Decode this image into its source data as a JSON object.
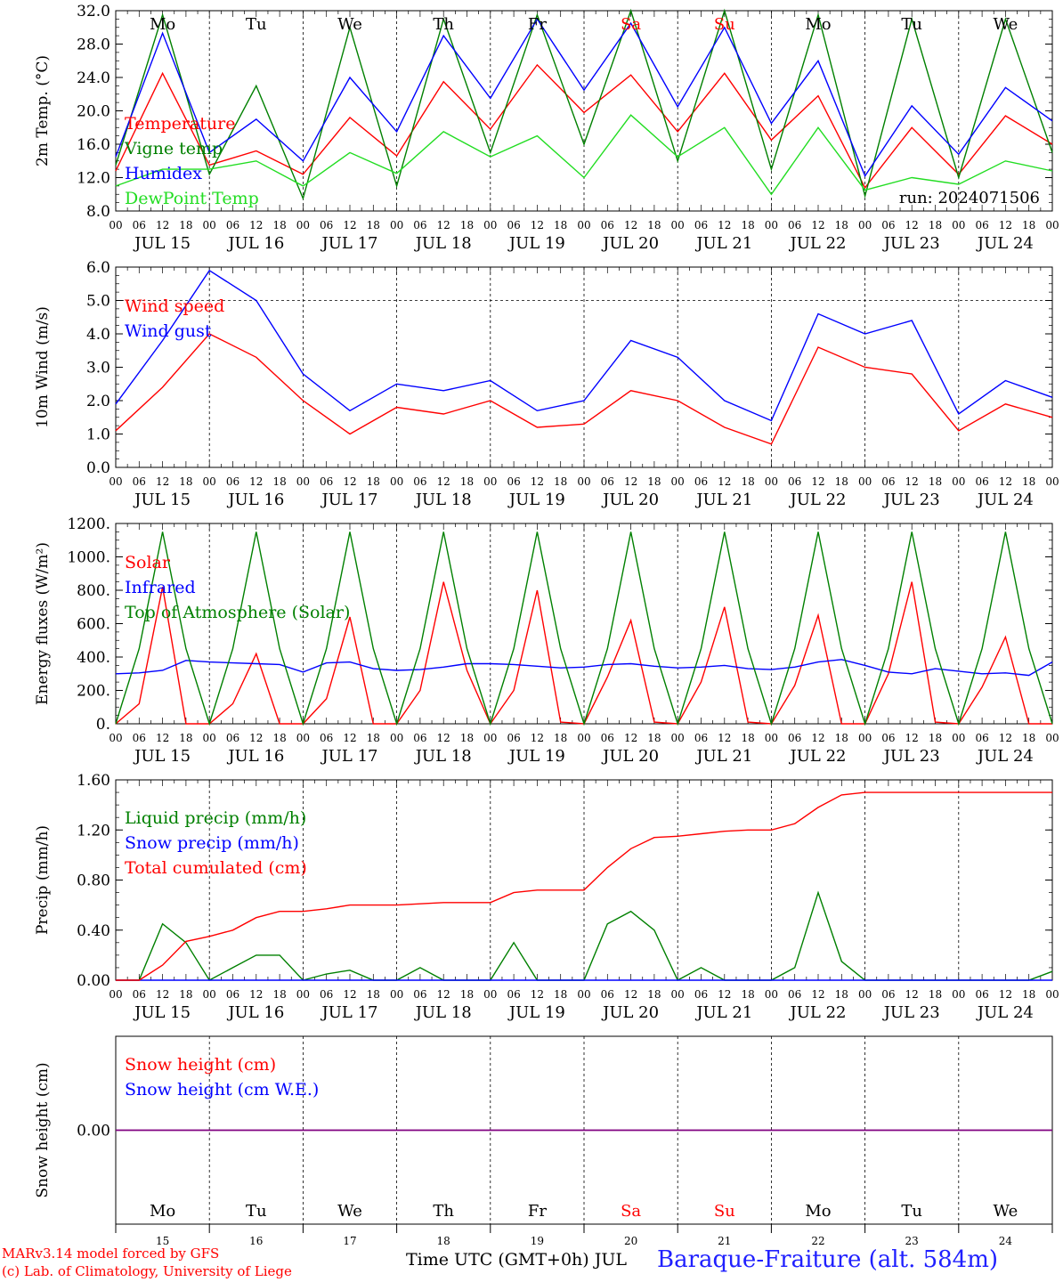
{
  "footer": {
    "model": "MARv3.14 model forced by GFS",
    "lab": "(c) Lab. of Climatology, University of Liege",
    "xaxis_label": "Time UTC (GMT+0h) JUL",
    "station": "Baraque-Fraiture (alt. 584m)"
  },
  "colors": {
    "red": "#ff0000",
    "green": "#008000",
    "blue": "#0000ff",
    "lightgreen": "#22dd22",
    "purple": "#800080",
    "weekend": "#ff0000"
  },
  "weekdays": [
    "Mo",
    "Tu",
    "We",
    "Th",
    "Fr",
    "Sa",
    "Su",
    "Mo",
    "Tu",
    "We"
  ],
  "weekend_flags": [
    false,
    false,
    false,
    false,
    false,
    true,
    true,
    false,
    false,
    false
  ],
  "day_numbers": [
    "15",
    "16",
    "17",
    "18",
    "19",
    "20",
    "21",
    "22",
    "23",
    "24"
  ],
  "date_labels": [
    "JUL 15",
    "JUL 16",
    "JUL 17",
    "JUL 18",
    "JUL 19",
    "JUL 20",
    "JUL 21",
    "JUL 22",
    "JUL 23",
    "JUL 24"
  ],
  "hour_ticks": [
    "00",
    "06",
    "12",
    "18"
  ],
  "final_hour_tick": "00",
  "chart_data": [
    {
      "type": "line",
      "ylabel": "2m Temp. (°C)",
      "ylim": [
        8,
        32
      ],
      "yticks": [
        "8.0",
        "12.0",
        "16.0",
        "20.0",
        "24.0",
        "28.0",
        "32.0"
      ],
      "annotation": "run: 2024071506",
      "x": [
        0,
        12,
        24,
        36,
        48,
        60,
        72,
        84,
        96,
        108,
        120,
        132,
        144,
        156,
        168,
        180,
        192,
        204,
        216,
        228,
        240
      ],
      "series": [
        {
          "name": "Temperature",
          "color": "#ff0000",
          "values": [
            12.8,
            24.5,
            13.5,
            15.2,
            12.4,
            19.2,
            14.6,
            23.5,
            17.8,
            25.5,
            19.8,
            24.3,
            17.5,
            24.5,
            16.5,
            21.8,
            10.8,
            18.0,
            12.4,
            19.4,
            16.0
          ]
        },
        {
          "name": "Vigne temp",
          "color": "#008000",
          "values": [
            13.5,
            31.5,
            12.4,
            23.0,
            9.5,
            30.0,
            11.0,
            31.0,
            15.0,
            31.5,
            16.0,
            32.0,
            14.0,
            32.0,
            13.0,
            31.5,
            9.8,
            31.0,
            12.0,
            31.0,
            15.0
          ]
        },
        {
          "name": "Humidex",
          "color": "#0000ff",
          "values": [
            14.5,
            29.3,
            15.0,
            19.0,
            14.0,
            24.0,
            17.5,
            29.0,
            21.5,
            31.0,
            22.5,
            30.5,
            20.5,
            30.0,
            18.5,
            26.0,
            12.2,
            20.6,
            14.8,
            22.8,
            18.8
          ]
        },
        {
          "name": "DewPoint Temp",
          "color": "#22dd22",
          "values": [
            11.0,
            13.0,
            13.0,
            14.0,
            11.0,
            15.0,
            12.5,
            17.5,
            14.5,
            17.0,
            12.0,
            19.5,
            14.5,
            18.0,
            10.0,
            18.0,
            10.5,
            12.0,
            11.2,
            14.0,
            12.8
          ]
        }
      ]
    },
    {
      "type": "line",
      "ylabel": "10m Wind (m/s)",
      "ylim": [
        0,
        6
      ],
      "yticks": [
        "0.0",
        "1.0",
        "2.0",
        "3.0",
        "4.0",
        "5.0",
        "6.0"
      ],
      "ref_line": 5,
      "x": [
        0,
        12,
        24,
        36,
        48,
        60,
        72,
        84,
        96,
        108,
        120,
        132,
        144,
        156,
        168,
        180,
        192,
        204,
        216,
        228,
        240
      ],
      "series": [
        {
          "name": "Wind speed",
          "color": "#ff0000",
          "values": [
            1.1,
            2.4,
            4.0,
            3.3,
            2.0,
            1.0,
            1.8,
            1.6,
            2.0,
            1.2,
            1.3,
            2.3,
            2.0,
            1.2,
            0.7,
            3.6,
            3.0,
            2.8,
            1.1,
            1.9,
            1.5
          ]
        },
        {
          "name": "Wind gust",
          "color": "#0000ff",
          "values": [
            1.9,
            3.8,
            5.9,
            5.0,
            2.8,
            1.7,
            2.5,
            2.3,
            2.6,
            1.7,
            2.0,
            3.8,
            3.3,
            2.0,
            1.4,
            4.6,
            4.0,
            4.4,
            1.6,
            2.6,
            2.1
          ]
        }
      ]
    },
    {
      "type": "line",
      "ylabel": "Energy fluxes (W/m²)",
      "ylim": [
        0,
        1200
      ],
      "yticks": [
        "0.",
        "200.",
        "400.",
        "600.",
        "800.",
        "1000.",
        "1200."
      ],
      "x_note": "values every 6 h from 00 Jul 15 to 00 Jul 25",
      "series": [
        {
          "name": "Solar",
          "color": "#ff0000",
          "values": [
            0,
            120,
            820,
            0,
            0,
            120,
            420,
            0,
            0,
            150,
            640,
            0,
            0,
            200,
            850,
            320,
            0,
            200,
            800,
            10,
            0,
            280,
            620,
            10,
            0,
            250,
            700,
            10,
            0,
            230,
            650,
            0,
            0,
            300,
            850,
            10,
            0,
            220,
            520,
            0,
            0
          ]
        },
        {
          "name": "Infrared",
          "color": "#0000ff",
          "values": [
            300,
            305,
            320,
            380,
            370,
            365,
            360,
            355,
            310,
            365,
            370,
            330,
            320,
            325,
            340,
            360,
            360,
            355,
            345,
            335,
            340,
            355,
            360,
            345,
            335,
            340,
            350,
            330,
            325,
            340,
            370,
            385,
            350,
            310,
            300,
            330,
            315,
            300,
            305,
            290,
            370
          ]
        },
        {
          "name": "Top of Atmosphere (Solar)",
          "color": "#008000",
          "values": [
            0,
            450,
            1150,
            450,
            0,
            450,
            1150,
            450,
            0,
            450,
            1150,
            450,
            0,
            450,
            1150,
            450,
            0,
            450,
            1150,
            450,
            0,
            450,
            1150,
            450,
            0,
            450,
            1150,
            450,
            0,
            450,
            1150,
            450,
            0,
            450,
            1150,
            450,
            0,
            450,
            1150,
            450,
            0
          ]
        }
      ]
    },
    {
      "type": "line",
      "ylabel": "Precip (mm/h)",
      "ylim": [
        0,
        1.6
      ],
      "yticks": [
        "0.00",
        "0.40",
        "0.80",
        "1.20",
        "1.60"
      ],
      "x_note": "values every 6 h from 00 Jul 15 to 00 Jul 25",
      "series": [
        {
          "name": "Liquid precip (mm/h)",
          "color": "#008000",
          "values": [
            0,
            0,
            0.45,
            0.3,
            0,
            0.1,
            0.2,
            0.2,
            0,
            0.05,
            0.08,
            0,
            0,
            0.1,
            0,
            0,
            0,
            0.3,
            0,
            0,
            0,
            0.45,
            0.55,
            0.4,
            0,
            0.1,
            0,
            0,
            0,
            0.1,
            0.7,
            0.15,
            0,
            0,
            0,
            0,
            0,
            0,
            0,
            0,
            0.07
          ]
        },
        {
          "name": "Snow precip (mm/h)",
          "color": "#0000ff",
          "values": [
            0,
            0,
            0,
            0,
            0,
            0,
            0,
            0,
            0,
            0,
            0,
            0,
            0,
            0,
            0,
            0,
            0,
            0,
            0,
            0,
            0,
            0,
            0,
            0,
            0,
            0,
            0,
            0,
            0,
            0,
            0,
            0,
            0,
            0,
            0,
            0,
            0,
            0,
            0,
            0,
            0
          ]
        },
        {
          "name": "Total cumulated (cm)",
          "color": "#ff0000",
          "values": [
            0,
            0,
            0.12,
            0.31,
            0.35,
            0.4,
            0.5,
            0.55,
            0.55,
            0.57,
            0.6,
            0.6,
            0.6,
            0.61,
            0.62,
            0.62,
            0.62,
            0.7,
            0.72,
            0.72,
            0.72,
            0.9,
            1.05,
            1.14,
            1.15,
            1.17,
            1.19,
            1.2,
            1.2,
            1.25,
            1.38,
            1.48,
            1.5,
            1.5,
            1.5,
            1.5,
            1.5,
            1.5,
            1.5,
            1.5,
            1.5
          ]
        }
      ]
    },
    {
      "type": "line",
      "ylabel": "Snow height (cm)",
      "ylim": [
        -1,
        1
      ],
      "yticks": [
        "0.00"
      ],
      "x": [
        0,
        240
      ],
      "series": [
        {
          "name": "Snow height (cm)",
          "color": "#ff0000",
          "values": [
            0,
            0
          ]
        },
        {
          "name": "Snow height (cm W.E.)",
          "color": "#0000ff",
          "values": [
            0,
            0
          ]
        }
      ]
    }
  ]
}
